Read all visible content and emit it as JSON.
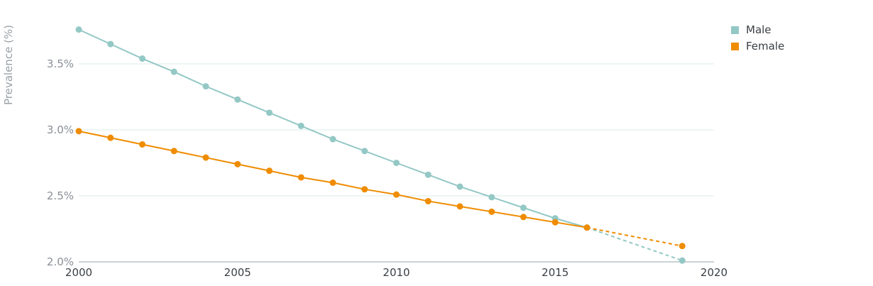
{
  "chart_data": {
    "type": "line",
    "title": "",
    "xlabel": "",
    "ylabel": "Prevalence (%)",
    "xlim": [
      2000,
      2020
    ],
    "ylim": [
      2.0,
      3.75
    ],
    "x_ticks": [
      2000,
      2005,
      2010,
      2015,
      2020
    ],
    "x_tick_labels": [
      "2000",
      "2005",
      "2010",
      "2015",
      "2020"
    ],
    "y_ticks": [
      2.0,
      2.5,
      3.0,
      3.5
    ],
    "y_tick_labels": [
      "2.0%",
      "2.5%",
      "3.0%",
      "3.5%"
    ],
    "grid": "horizontal",
    "legend_position": "top-right",
    "series": [
      {
        "name": "Male",
        "color": "#93c8c5",
        "x": [
          2000,
          2001,
          2002,
          2003,
          2004,
          2005,
          2006,
          2007,
          2008,
          2009,
          2010,
          2011,
          2012,
          2013,
          2014,
          2015,
          2016,
          2019
        ],
        "y": [
          3.76,
          3.65,
          3.54,
          3.44,
          3.33,
          3.23,
          3.13,
          3.03,
          2.93,
          2.84,
          2.75,
          2.66,
          2.57,
          2.49,
          2.41,
          2.33,
          2.26,
          2.01
        ],
        "projected_from_index": 16
      },
      {
        "name": "Female",
        "color": "#ef8c00",
        "x": [
          2000,
          2001,
          2002,
          2003,
          2004,
          2005,
          2006,
          2007,
          2008,
          2009,
          2010,
          2011,
          2012,
          2013,
          2014,
          2015,
          2016,
          2019
        ],
        "y": [
          2.99,
          2.94,
          2.89,
          2.84,
          2.79,
          2.74,
          2.69,
          2.64,
          2.6,
          2.55,
          2.51,
          2.46,
          2.42,
          2.38,
          2.34,
          2.3,
          2.26,
          2.12
        ],
        "projected_from_index": 16
      }
    ]
  }
}
